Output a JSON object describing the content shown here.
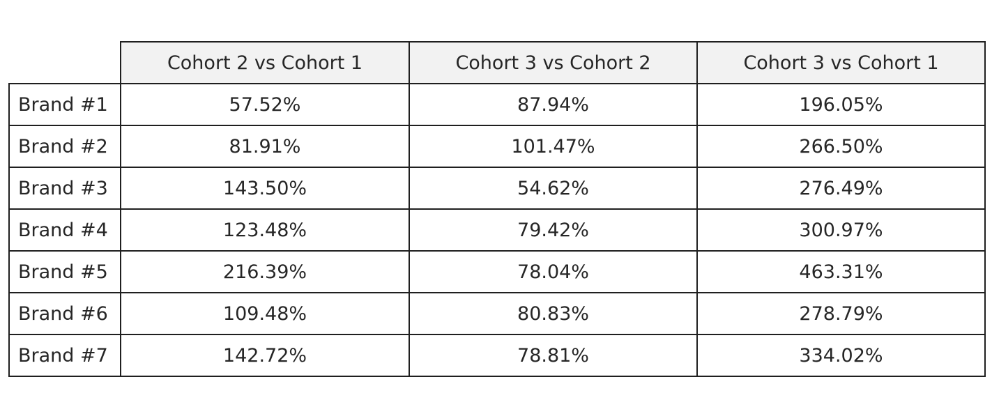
{
  "chart_data": {
    "type": "table",
    "columns": [
      "Cohort 2 vs Cohort 1",
      "Cohort 3 vs Cohort 2",
      "Cohort 3 vs Cohort 1"
    ],
    "rows": [
      {
        "label": "Brand #1",
        "values": [
          "57.52%",
          "87.94%",
          "196.05%"
        ]
      },
      {
        "label": "Brand #2",
        "values": [
          "81.91%",
          "101.47%",
          "266.50%"
        ]
      },
      {
        "label": "Brand #3",
        "values": [
          "143.50%",
          "54.62%",
          "276.49%"
        ]
      },
      {
        "label": "Brand #4",
        "values": [
          "123.48%",
          "79.42%",
          "300.97%"
        ]
      },
      {
        "label": "Brand #5",
        "values": [
          "216.39%",
          "78.04%",
          "463.31%"
        ]
      },
      {
        "label": "Brand #6",
        "values": [
          "109.48%",
          "80.83%",
          "278.79%"
        ]
      },
      {
        "label": "Brand #7",
        "values": [
          "142.72%",
          "78.81%",
          "334.02%"
        ]
      }
    ],
    "colors": {
      "header_background": "#f2f2f2",
      "border": "#1f1f1f",
      "text": "#262626"
    }
  }
}
